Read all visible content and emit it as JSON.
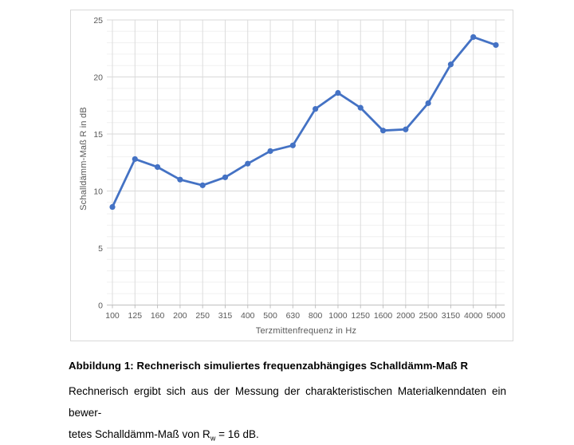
{
  "chart_data": {
    "type": "line",
    "title": "",
    "categories": [
      "100",
      "125",
      "160",
      "200",
      "250",
      "315",
      "400",
      "500",
      "630",
      "800",
      "1000",
      "1250",
      "1600",
      "2000",
      "2500",
      "3150",
      "4000",
      "5000"
    ],
    "values": [
      8.6,
      12.8,
      12.1,
      11.0,
      10.5,
      11.2,
      12.4,
      13.5,
      14.0,
      17.2,
      18.6,
      17.3,
      15.3,
      15.4,
      17.7,
      21.1,
      23.5,
      22.8
    ],
    "xlabel": "Terzmittenfrequenz in Hz",
    "ylabel": "Schalldämm-Maß R in dB",
    "ylim": [
      0,
      25
    ],
    "y_major_step": 5,
    "y_minor_step": 1,
    "legend": "none",
    "grid": "horizontal major+minor, vertical at each category",
    "colors": {
      "line": "#4472c4",
      "marker": "#4472c4",
      "major_grid": "#d9d9d9",
      "minor_grid": "#f0f0f0",
      "vertical_grid": "#dcdcdc",
      "axis_line": "#bfbfbf",
      "tick_text": "#595959"
    }
  },
  "caption": {
    "title": "Abbildung 1: Rechnerisch simuliertes frequenzabhängiges Schalldämm-Maß R",
    "line1": "Rechnerisch ergibt sich aus der Messung der charakteristischen Materialkenndaten ein bewer-",
    "line2_pre": "tetes Schalldämm-Maß von R",
    "line2_sub": "w",
    "line2_post": " = 16 dB."
  }
}
